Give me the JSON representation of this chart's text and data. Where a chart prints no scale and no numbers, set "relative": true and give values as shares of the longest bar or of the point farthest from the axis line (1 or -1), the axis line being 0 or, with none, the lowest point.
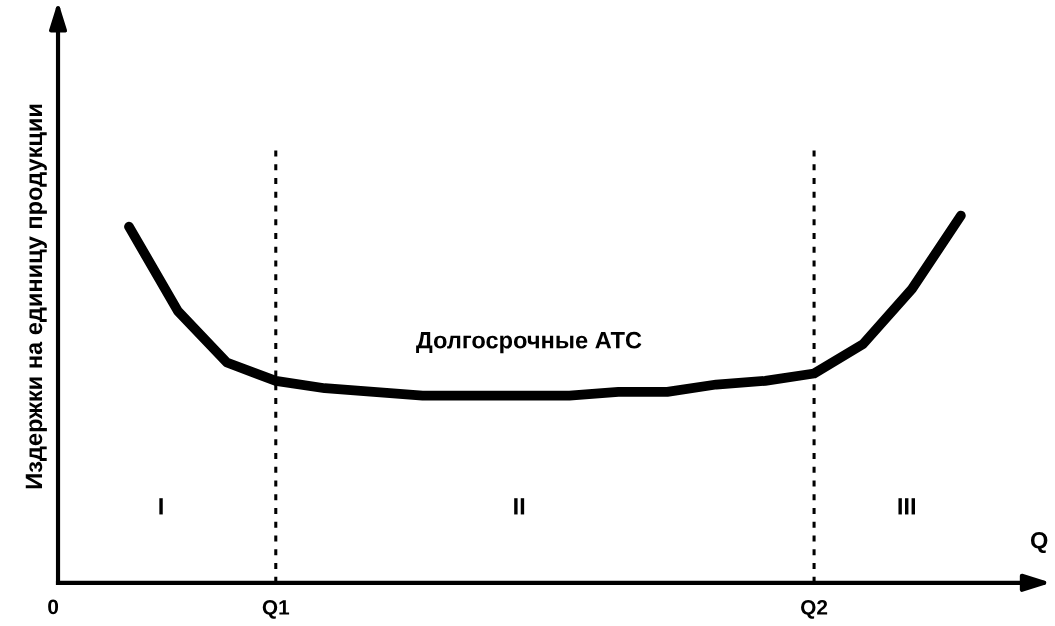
{
  "chart_data": {
    "type": "line",
    "relative": true,
    "ylabel": "Издержки на единицу продукции",
    "xlabel": "Q",
    "categories": [
      null,
      null,
      null,
      "Q1",
      null,
      null,
      null,
      null,
      null,
      null,
      null,
      null,
      null,
      null,
      "Q2",
      null,
      null,
      null
    ],
    "series": [
      {
        "color": "#000000",
        "values": [
          0.97,
          0.74,
          0.6,
          0.55,
          0.53,
          0.52,
          0.51,
          0.51,
          0.51,
          0.51,
          0.52,
          0.52,
          0.54,
          0.55,
          0.57,
          0.65,
          0.8,
          1
        ]
      }
    ],
    "ref_lines": [
      {
        "axis": "x",
        "value": "Q1",
        "color": "#000000",
        "line_style": "dotted"
      },
      {
        "axis": "x",
        "value": "Q2",
        "color": "#000000",
        "line_style": "dotted"
      }
    ],
    "annotations": [
      "0",
      "Долгосрочные АТС",
      "I",
      "II",
      "III"
    ],
    "grid": false,
    "legend": false,
    "marker": "none",
    "line_style": "solid"
  }
}
